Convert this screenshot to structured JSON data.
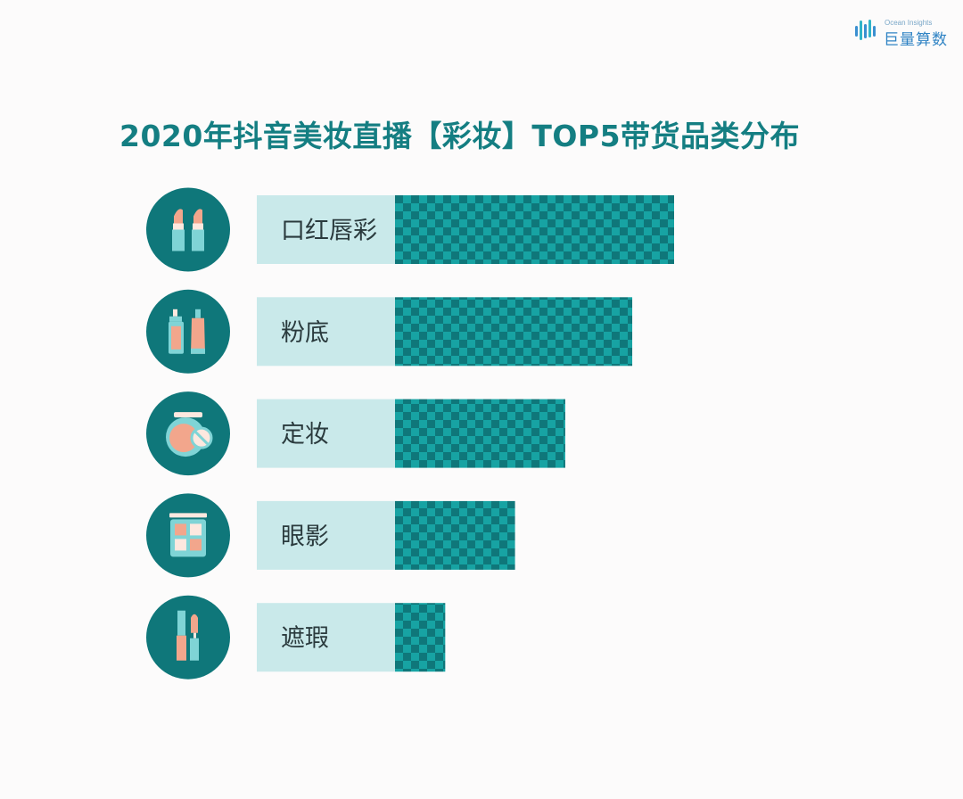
{
  "brand": {
    "name_en": "Ocean Insights",
    "name_cn": "巨量算数"
  },
  "title": "2020年抖音美妆直播【彩妆】TOP5带货品类分布",
  "colors": {
    "title": "#147e82",
    "circle": "#0f777a",
    "bar_dark": "#0f777a",
    "bar_light": "#17a3a3",
    "label_bg": "#c9e9ea",
    "icon_teal": "#7fd4d6",
    "icon_peach": "#f2a68c",
    "icon_cream": "#fde8df"
  },
  "chart_data": {
    "type": "bar",
    "orientation": "horizontal",
    "categories": [
      "口红唇彩",
      "粉底",
      "定妆",
      "眼影",
      "遮瑕"
    ],
    "icons": [
      "lipstick-icon",
      "foundation-icon",
      "powder-compact-icon",
      "eyeshadow-palette-icon",
      "concealer-icon"
    ],
    "values": [
      100,
      85,
      61,
      43,
      18
    ],
    "value_unit": "relative share (no axis printed)",
    "title": "2020年抖音美妆直播【彩妆】TOP5带货品类分布",
    "xlabel": "",
    "ylabel": "",
    "grid": false,
    "legend": "none"
  }
}
